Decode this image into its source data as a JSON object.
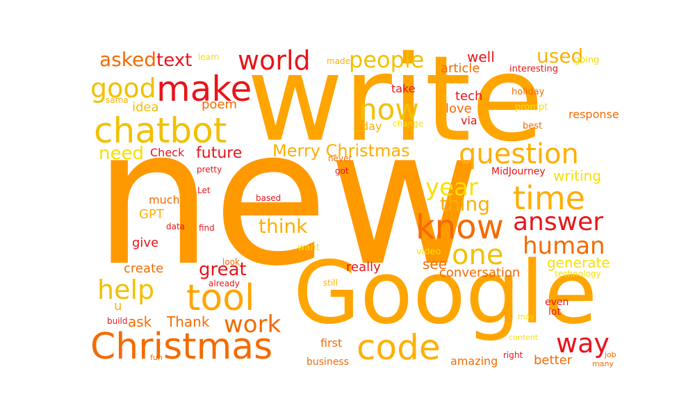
{
  "palette": {
    "red": "#e8141a",
    "orange": "#ff9900",
    "amber": "#ffaa00",
    "gold": "#f5c400",
    "yellow": "#f8e000",
    "deep_orange": "#f56200"
  },
  "words": [
    {
      "text": "new",
      "color": "#ff9900"
    },
    {
      "text": "write",
      "color": "#ffa500"
    },
    {
      "text": "Google",
      "color": "#ffa500"
    },
    {
      "text": "Christmas",
      "color": "#f56a00"
    },
    {
      "text": "chatbot",
      "color": "#f2c000"
    },
    {
      "text": "make",
      "color": "#e8141a"
    },
    {
      "text": "tool",
      "color": "#ffa500"
    },
    {
      "text": "code",
      "color": "#ffb000"
    },
    {
      "text": "know",
      "color": "#f56a00"
    },
    {
      "text": "time",
      "color": "#ffae00"
    },
    {
      "text": "question",
      "color": "#ffae00"
    },
    {
      "text": "now",
      "color": "#f2c000"
    },
    {
      "text": "world",
      "color": "#e8141a"
    },
    {
      "text": "people",
      "color": "#f2c000"
    },
    {
      "text": "good",
      "color": "#f2c000"
    },
    {
      "text": "asked",
      "color": "#f56a00"
    },
    {
      "text": "text",
      "color": "#e8141a"
    },
    {
      "text": "used",
      "color": "#ffb000"
    },
    {
      "text": "answer",
      "color": "#e8141a"
    },
    {
      "text": "one",
      "color": "#f2c000"
    },
    {
      "text": "human",
      "color": "#f56a00"
    },
    {
      "text": "way",
      "color": "#e8141a"
    },
    {
      "text": "work",
      "color": "#f56a00"
    },
    {
      "text": "help",
      "color": "#f2c000"
    },
    {
      "text": "year",
      "color": "#f8e000"
    },
    {
      "text": "thing",
      "color": "#ffae00"
    },
    {
      "text": "think",
      "color": "#ffae00"
    },
    {
      "text": "Merry Christmas",
      "color": "#ffae00"
    },
    {
      "text": "future",
      "color": "#e8141a"
    },
    {
      "text": "need",
      "color": "#f8e000"
    },
    {
      "text": "great",
      "color": "#e8141a"
    },
    {
      "text": "idea",
      "color": "#f2c000"
    },
    {
      "text": "poem",
      "color": "#f56a00"
    },
    {
      "text": "ask",
      "color": "#f56a00"
    },
    {
      "text": "Thank",
      "color": "#f56a00"
    },
    {
      "text": "generate",
      "color": "#f8e000"
    },
    {
      "text": "writing",
      "color": "#f8e000"
    },
    {
      "text": "conversation",
      "color": "#f56a00"
    },
    {
      "text": "better",
      "color": "#f56a00"
    },
    {
      "text": "see",
      "color": "#f56a00"
    },
    {
      "text": "really",
      "color": "#e8141a"
    },
    {
      "text": "create",
      "color": "#f56a00"
    },
    {
      "text": "give",
      "color": "#e8141a"
    },
    {
      "text": "GPT",
      "color": "#ffae00"
    },
    {
      "text": "much",
      "color": "#f56a00"
    },
    {
      "text": "well",
      "color": "#e8141a"
    },
    {
      "text": "article",
      "color": "#f56a00"
    },
    {
      "text": "tech",
      "color": "#e8141a"
    },
    {
      "text": "love",
      "color": "#f56a00"
    },
    {
      "text": "day",
      "color": "#ffae00"
    },
    {
      "text": "take",
      "color": "#e8141a"
    },
    {
      "text": "via",
      "color": "#e8141a"
    },
    {
      "text": "response",
      "color": "#f56a00"
    },
    {
      "text": "Check",
      "color": "#e8141a"
    },
    {
      "text": "u",
      "color": "#ffae00"
    },
    {
      "text": "first",
      "color": "#f56a00"
    },
    {
      "text": "business",
      "color": "#f56a00"
    },
    {
      "text": "amazing",
      "color": "#f56a00"
    },
    {
      "text": "even",
      "color": "#e8141a"
    },
    {
      "text": "lot",
      "color": "#e8141a"
    },
    {
      "text": "MidJourney",
      "color": "#e8141a"
    },
    {
      "text": "interesting",
      "color": "#e8141a"
    },
    {
      "text": "going",
      "color": "#f8e000"
    },
    {
      "text": "holiday",
      "color": "#f56a00"
    },
    {
      "text": "prompt",
      "color": "#f8e000"
    },
    {
      "text": "best",
      "color": "#f56a00"
    },
    {
      "text": "change",
      "color": "#f8e000"
    },
    {
      "text": "learn",
      "color": "#f8e000"
    },
    {
      "text": "made",
      "color": "#ffae00"
    },
    {
      "text": "sama",
      "color": "#ffae00"
    },
    {
      "text": "never",
      "color": "#f56a00"
    },
    {
      "text": "got",
      "color": "#e8141a"
    },
    {
      "text": "pretty",
      "color": "#e8141a"
    },
    {
      "text": "Let",
      "color": "#e8141a"
    },
    {
      "text": "based",
      "color": "#e8141a"
    },
    {
      "text": "data",
      "color": "#e8141a"
    },
    {
      "text": "find",
      "color": "#e8141a"
    },
    {
      "text": "want",
      "color": "#f8e000"
    },
    {
      "text": "video",
      "color": "#f8e000"
    },
    {
      "text": "look",
      "color": "#f56a00"
    },
    {
      "text": "already",
      "color": "#e8141a"
    },
    {
      "text": "still",
      "color": "#ffae00"
    },
    {
      "text": "technology",
      "color": "#f8e000"
    },
    {
      "text": "build",
      "color": "#e8141a"
    },
    {
      "text": "fun",
      "color": "#f56a00"
    },
    {
      "text": "may",
      "color": "#f8e000"
    },
    {
      "text": "content",
      "color": "#f8e000"
    },
    {
      "text": "right",
      "color": "#e8141a"
    },
    {
      "text": "job",
      "color": "#f56a00"
    },
    {
      "text": "many",
      "color": "#f56a00"
    }
  ]
}
